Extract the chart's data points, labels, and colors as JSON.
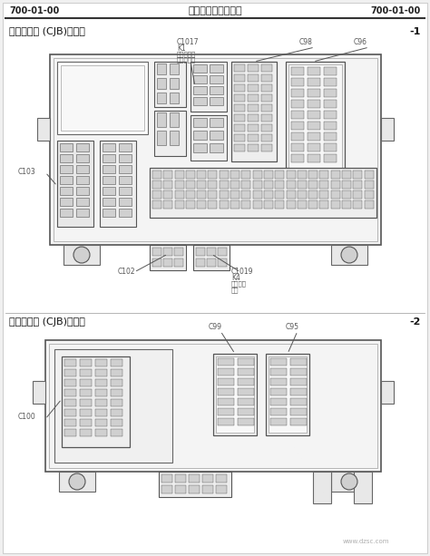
{
  "bg_color": "#f0f0f0",
  "white": "#ffffff",
  "light_gray": "#e8e8e8",
  "mid_gray": "#d0d0d0",
  "dark_gray": "#888888",
  "line_color": "#555555",
  "box_edge": "#666666",
  "header_left": "700-01-00",
  "header_center": "保险丝和继电器信息",
  "header_right": "700-01-00",
  "sec1_title": "中央接线盒 (CJB)，顶端",
  "sec1_num": "-1",
  "sec2_title": "中央连接盒 (CJB)，后方",
  "sec2_num": "-2",
  "lbl_C1017": "C1017",
  "lbl_K1": "K1",
  "lbl_K1a": "后门风精调",
  "lbl_K1b": "除雾继电器",
  "lbl_C98": "C98",
  "lbl_C96": "C96",
  "lbl_C103": "C103",
  "lbl_C102": "C102",
  "lbl_C1019": "C1019",
  "lbl_K4": "K4",
  "lbl_K4a": "燃油泵继",
  "lbl_K4b": "电器",
  "lbl_C99": "C99",
  "lbl_C95": "C95",
  "lbl_C100": "C100",
  "watermark": "www.dzsc.com"
}
